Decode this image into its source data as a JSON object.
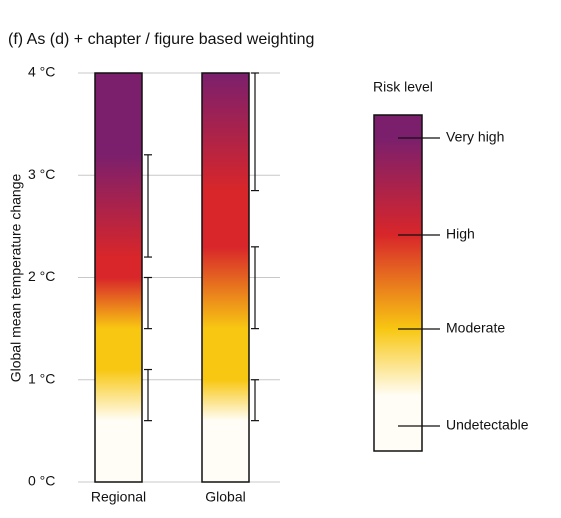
{
  "chart_data": {
    "type": "ember",
    "title": "(f) As (d) + chapter / figure based weighting",
    "y_label": "Global mean temperature change",
    "ylim": [
      0,
      4
    ],
    "yticks": [
      {
        "value": 0,
        "label": "0 °C"
      },
      {
        "value": 1,
        "label": "1 °C"
      },
      {
        "value": 2,
        "label": "2 °C"
      },
      {
        "value": 3,
        "label": "3 °C"
      },
      {
        "value": 4,
        "label": "4 °C"
      }
    ],
    "grid": true,
    "categories": [
      "Regional",
      "Global"
    ],
    "transitions": [
      [
        [
          0.6,
          1.1
        ],
        [
          1.5,
          2.0
        ],
        [
          2.2,
          3.2
        ]
      ],
      [
        [
          0.6,
          1.0
        ],
        [
          1.5,
          2.3
        ],
        [
          2.85,
          4.0
        ]
      ]
    ],
    "legend_title": "Risk level",
    "risk_levels": [
      {
        "name": "Undetectable",
        "color": "#fffdf6"
      },
      {
        "name": "Moderate",
        "color": "#f8c712"
      },
      {
        "name": "High",
        "color": "#d8262a"
      },
      {
        "name": "Very high",
        "color": "#7b1f6d"
      }
    ]
  }
}
